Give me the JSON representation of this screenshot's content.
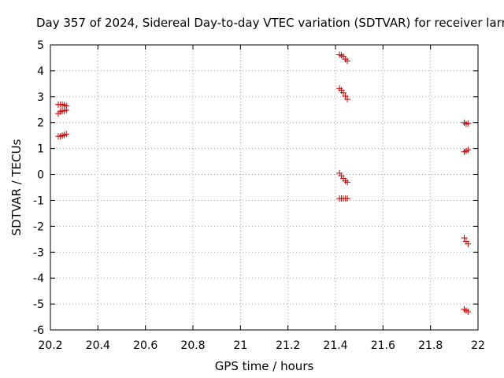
{
  "chart_data": {
    "type": "scatter",
    "title": "Day 357 of 2024, Sidereal Day-to-day VTEC variation (SDTVAR) for receiver larr",
    "xlabel": "GPS time / hours",
    "ylabel": "SDTVAR / TECUs",
    "xlim": [
      20.2,
      22
    ],
    "ylim": [
      -6,
      5
    ],
    "xticks": [
      20.2,
      20.4,
      20.6,
      20.8,
      21,
      21.2,
      21.4,
      21.6,
      21.8,
      22
    ],
    "xtick_labels": [
      "20.2",
      "20.4",
      "20.6",
      "20.8",
      "21",
      "21.2",
      "21.4",
      "21.6",
      "21.8",
      "22"
    ],
    "yticks": [
      -6,
      -5,
      -4,
      -3,
      -2,
      -1,
      0,
      1,
      2,
      3,
      4,
      5
    ],
    "ytick_labels": [
      "-6",
      "-5",
      "-4",
      "-3",
      "-2",
      "-1",
      "0",
      "1",
      "2",
      "3",
      "4",
      "5"
    ],
    "grid": true,
    "marker": "+",
    "marker_color": "#cc0000",
    "series": [
      {
        "name": "SDTVAR",
        "points": [
          [
            20.233,
            2.7
          ],
          [
            20.242,
            2.7
          ],
          [
            20.25,
            2.7
          ],
          [
            20.258,
            2.68
          ],
          [
            20.267,
            2.65
          ],
          [
            20.233,
            2.35
          ],
          [
            20.242,
            2.42
          ],
          [
            20.25,
            2.45
          ],
          [
            20.258,
            2.45
          ],
          [
            20.267,
            2.48
          ],
          [
            20.233,
            1.47
          ],
          [
            20.242,
            1.47
          ],
          [
            20.25,
            1.5
          ],
          [
            20.258,
            1.52
          ],
          [
            20.267,
            1.56
          ],
          [
            21.417,
            4.62
          ],
          [
            21.425,
            4.6
          ],
          [
            21.433,
            4.55
          ],
          [
            21.442,
            4.45
          ],
          [
            21.45,
            4.38
          ],
          [
            21.417,
            3.32
          ],
          [
            21.425,
            3.25
          ],
          [
            21.433,
            3.15
          ],
          [
            21.442,
            3.02
          ],
          [
            21.45,
            2.9
          ],
          [
            21.417,
            0.05
          ],
          [
            21.425,
            -0.05
          ],
          [
            21.433,
            -0.15
          ],
          [
            21.442,
            -0.25
          ],
          [
            21.45,
            -0.3
          ],
          [
            21.417,
            -0.93
          ],
          [
            21.425,
            -0.93
          ],
          [
            21.433,
            -0.93
          ],
          [
            21.442,
            -0.93
          ],
          [
            21.45,
            -0.93
          ],
          [
            21.942,
            2.0
          ],
          [
            21.95,
            1.95
          ],
          [
            21.958,
            1.97
          ],
          [
            21.942,
            0.87
          ],
          [
            21.95,
            0.9
          ],
          [
            21.958,
            0.95
          ],
          [
            21.942,
            -2.45
          ],
          [
            21.95,
            -2.58
          ],
          [
            21.958,
            -2.68
          ],
          [
            21.942,
            -5.2
          ],
          [
            21.95,
            -5.25
          ],
          [
            21.958,
            -5.3
          ]
        ]
      }
    ]
  }
}
